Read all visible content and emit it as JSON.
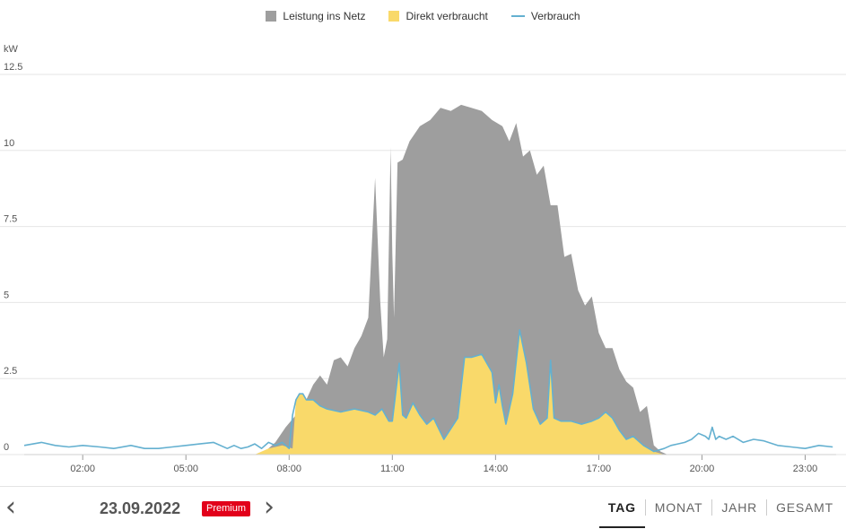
{
  "legend": [
    {
      "label": "Leistung ins Netz",
      "color": "#9e9e9e",
      "kind": "box"
    },
    {
      "label": "Direkt verbraucht",
      "color": "#f9d96a",
      "kind": "box"
    },
    {
      "label": "Verbrauch",
      "color": "#64b0d0",
      "kind": "line"
    }
  ],
  "chart_data": {
    "type": "area",
    "ylabel": "kW",
    "ylim": [
      0,
      12.5
    ],
    "yticks": [
      "0",
      "2.5",
      "5",
      "7.5",
      "10",
      "12.5"
    ],
    "xticks": [
      "02:00",
      "05:00",
      "08:00",
      "11:00",
      "14:00",
      "17:00",
      "20:00",
      "23:00"
    ],
    "xlim_hours": [
      0.3,
      23.9
    ],
    "grid": "horizontal",
    "series": [
      {
        "name": "Leistung ins Netz",
        "color": "#9e9e9e",
        "x": [
          7.0,
          7.3,
          7.6,
          7.9,
          8.2,
          8.5,
          8.7,
          8.9,
          9.1,
          9.3,
          9.5,
          9.7,
          9.9,
          10.1,
          10.3,
          10.5,
          10.65,
          10.75,
          10.85,
          10.95,
          11.0,
          11.05,
          11.15,
          11.3,
          11.5,
          11.8,
          12.1,
          12.4,
          12.7,
          13.0,
          13.3,
          13.6,
          13.9,
          14.2,
          14.4,
          14.6,
          14.8,
          15.0,
          15.2,
          15.4,
          15.6,
          15.8,
          16.0,
          16.2,
          16.4,
          16.6,
          16.8,
          17.0,
          17.2,
          17.4,
          17.6,
          17.8,
          18.0,
          18.2,
          18.4,
          18.6,
          18.8,
          19.0
        ],
        "y": [
          0.0,
          0.1,
          0.4,
          0.9,
          1.3,
          1.8,
          2.3,
          2.6,
          2.3,
          3.1,
          3.2,
          2.9,
          3.5,
          3.9,
          4.5,
          9.1,
          5.0,
          3.2,
          3.8,
          10.1,
          6.6,
          4.5,
          9.6,
          9.7,
          10.3,
          10.8,
          11.0,
          11.4,
          11.3,
          11.5,
          11.4,
          11.3,
          11.0,
          10.8,
          10.3,
          10.9,
          9.8,
          10.0,
          9.2,
          9.5,
          8.2,
          8.2,
          6.5,
          6.6,
          5.4,
          4.9,
          5.2,
          4.0,
          3.5,
          3.5,
          2.8,
          2.4,
          2.2,
          1.4,
          1.6,
          0.3,
          0.1,
          0.0
        ]
      },
      {
        "name": "Direkt verbraucht",
        "color": "#f9d96a",
        "x": [
          7.0,
          7.4,
          7.8,
          8.1,
          8.2,
          8.3,
          8.4,
          8.5,
          8.7,
          8.9,
          9.1,
          9.5,
          9.9,
          10.3,
          10.5,
          10.7,
          10.9,
          11.0,
          11.2,
          11.3,
          11.4,
          11.6,
          11.8,
          12.0,
          12.2,
          12.5,
          12.9,
          13.1,
          13.3,
          13.6,
          13.9,
          14.0,
          14.1,
          14.2,
          14.3,
          14.5,
          14.7,
          14.9,
          15.1,
          15.3,
          15.5,
          15.6,
          15.7,
          15.9,
          16.2,
          16.5,
          16.8,
          17.0,
          17.2,
          17.4,
          17.6,
          17.8,
          18.0,
          18.3,
          18.6,
          18.9
        ],
        "y": [
          0.0,
          0.2,
          0.3,
          0.2,
          1.8,
          2.0,
          2.0,
          1.8,
          1.8,
          1.6,
          1.5,
          1.4,
          1.5,
          1.4,
          1.3,
          1.5,
          1.1,
          1.1,
          3.0,
          1.3,
          1.2,
          1.7,
          1.3,
          1.0,
          1.2,
          0.5,
          1.2,
          3.2,
          3.2,
          3.3,
          2.7,
          1.7,
          2.3,
          1.6,
          1.0,
          2.0,
          4.1,
          3.0,
          1.5,
          1.0,
          1.2,
          3.1,
          1.2,
          1.1,
          1.1,
          1.0,
          1.1,
          1.2,
          1.4,
          1.2,
          0.8,
          0.5,
          0.6,
          0.3,
          0.1,
          0.0
        ]
      },
      {
        "name": "Verbrauch",
        "color": "#64b0d0",
        "x": [
          0.3,
          0.8,
          1.2,
          1.6,
          2.0,
          2.5,
          2.9,
          3.4,
          3.8,
          4.2,
          4.6,
          5.0,
          5.4,
          5.8,
          6.2,
          6.4,
          6.6,
          6.8,
          7.0,
          7.2,
          7.4,
          7.6,
          7.8,
          8.0,
          8.1,
          8.2,
          8.3,
          8.4,
          8.5,
          8.7,
          8.9,
          9.1,
          9.5,
          9.9,
          10.3,
          10.5,
          10.7,
          10.9,
          11.0,
          11.2,
          11.3,
          11.4,
          11.6,
          11.8,
          12.0,
          12.2,
          12.5,
          12.9,
          13.1,
          13.3,
          13.6,
          13.9,
          14.0,
          14.1,
          14.2,
          14.3,
          14.5,
          14.7,
          14.9,
          15.1,
          15.3,
          15.5,
          15.6,
          15.7,
          15.9,
          16.2,
          16.5,
          16.8,
          17.0,
          17.2,
          17.4,
          17.6,
          17.8,
          18.0,
          18.3,
          18.6,
          18.9,
          19.1,
          19.3,
          19.5,
          19.7,
          19.9,
          20.1,
          20.2,
          20.3,
          20.4,
          20.5,
          20.7,
          20.9,
          21.2,
          21.5,
          21.8,
          22.2,
          22.6,
          23.0,
          23.4,
          23.8
        ],
        "y": [
          0.3,
          0.4,
          0.3,
          0.25,
          0.3,
          0.25,
          0.2,
          0.3,
          0.2,
          0.2,
          0.25,
          0.3,
          0.35,
          0.4,
          0.2,
          0.3,
          0.2,
          0.25,
          0.35,
          0.2,
          0.4,
          0.3,
          0.4,
          0.2,
          1.3,
          1.8,
          2.0,
          2.0,
          1.8,
          1.8,
          1.6,
          1.5,
          1.4,
          1.5,
          1.4,
          1.3,
          1.5,
          1.1,
          1.1,
          3.0,
          1.3,
          1.2,
          1.7,
          1.3,
          1.0,
          1.2,
          0.5,
          1.2,
          3.2,
          3.2,
          3.3,
          2.7,
          1.7,
          2.3,
          1.6,
          1.0,
          2.0,
          4.1,
          3.0,
          1.5,
          1.0,
          1.2,
          3.1,
          1.2,
          1.1,
          1.1,
          1.0,
          1.1,
          1.2,
          1.4,
          1.2,
          0.8,
          0.5,
          0.6,
          0.3,
          0.1,
          0.2,
          0.3,
          0.35,
          0.4,
          0.5,
          0.7,
          0.6,
          0.5,
          0.9,
          0.5,
          0.6,
          0.5,
          0.6,
          0.4,
          0.5,
          0.45,
          0.3,
          0.25,
          0.2,
          0.3,
          0.25
        ]
      }
    ]
  },
  "footer": {
    "prev_label": "‹",
    "next_label": "›",
    "date": "23.09.2022",
    "badge": "Premium",
    "tabs": [
      "TAG",
      "MONAT",
      "JAHR",
      "GESAMT"
    ],
    "active_tab": "TAG"
  }
}
